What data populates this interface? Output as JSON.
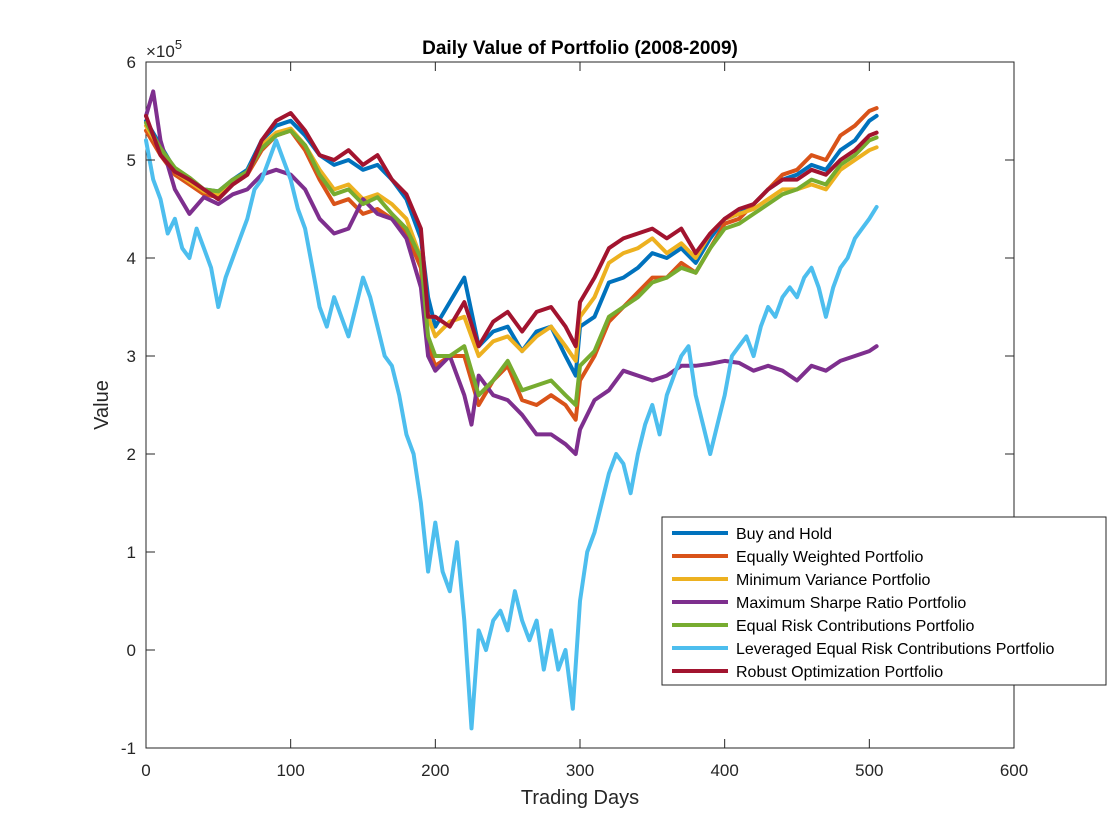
{
  "chart_data": {
    "type": "line",
    "title": "Daily Value of Portfolio (2008-2009)",
    "xlabel": "Trading Days",
    "ylabel": "Value",
    "y_exponent_label": "×10",
    "y_exponent": "5",
    "xlim": [
      0,
      600
    ],
    "ylim": [
      -100000,
      600000
    ],
    "x_ticks": [
      0,
      100,
      200,
      300,
      400,
      500,
      600
    ],
    "x_tick_labels": [
      "0",
      "100",
      "200",
      "300",
      "400",
      "500",
      "600"
    ],
    "y_ticks": [
      -100000,
      0,
      100000,
      200000,
      300000,
      400000,
      500000,
      600000
    ],
    "y_tick_labels": [
      "-1",
      "0",
      "1",
      "2",
      "3",
      "4",
      "5",
      "6"
    ],
    "grid": false,
    "legend_position": "lower-right",
    "series": [
      {
        "name": "Buy and Hold",
        "color": "#0072BD",
        "x": [
          0,
          10,
          20,
          30,
          40,
          50,
          60,
          70,
          80,
          90,
          100,
          110,
          120,
          130,
          140,
          150,
          160,
          170,
          180,
          190,
          195,
          200,
          210,
          220,
          230,
          240,
          250,
          260,
          270,
          280,
          290,
          297,
          300,
          310,
          320,
          330,
          340,
          350,
          360,
          370,
          380,
          390,
          400,
          410,
          420,
          430,
          440,
          450,
          460,
          470,
          480,
          490,
          500,
          505
        ],
        "values": [
          540000,
          515000,
          490000,
          478000,
          470000,
          468000,
          480000,
          490000,
          520000,
          535000,
          540000,
          525000,
          505000,
          495000,
          500000,
          490000,
          495000,
          480000,
          460000,
          420000,
          360000,
          330000,
          355000,
          380000,
          310000,
          325000,
          330000,
          305000,
          325000,
          330000,
          300000,
          280000,
          330000,
          340000,
          375000,
          380000,
          390000,
          405000,
          400000,
          410000,
          395000,
          420000,
          440000,
          445000,
          455000,
          470000,
          480000,
          485000,
          495000,
          490000,
          510000,
          520000,
          540000,
          545000
        ]
      },
      {
        "name": "Equally Weighted Portfolio",
        "color": "#D95319",
        "x": [
          0,
          10,
          20,
          30,
          40,
          50,
          60,
          70,
          80,
          90,
          100,
          110,
          120,
          130,
          140,
          150,
          160,
          170,
          180,
          190,
          195,
          200,
          210,
          220,
          230,
          240,
          250,
          260,
          270,
          280,
          290,
          297,
          300,
          310,
          320,
          330,
          340,
          350,
          360,
          370,
          380,
          390,
          400,
          410,
          420,
          430,
          440,
          450,
          460,
          470,
          480,
          490,
          500,
          505
        ],
        "values": [
          530000,
          505000,
          485000,
          475000,
          465000,
          462000,
          475000,
          485000,
          510000,
          525000,
          530000,
          510000,
          480000,
          455000,
          460000,
          445000,
          450000,
          440000,
          425000,
          390000,
          310000,
          290000,
          300000,
          300000,
          250000,
          275000,
          290000,
          255000,
          250000,
          260000,
          250000,
          235000,
          275000,
          300000,
          335000,
          350000,
          365000,
          380000,
          380000,
          395000,
          385000,
          410000,
          435000,
          440000,
          455000,
          470000,
          485000,
          490000,
          505000,
          500000,
          525000,
          535000,
          550000,
          553000
        ]
      },
      {
        "name": "Minimum Variance Portfolio",
        "color": "#EDB120",
        "x": [
          0,
          10,
          20,
          30,
          40,
          50,
          60,
          70,
          80,
          90,
          100,
          110,
          120,
          130,
          140,
          150,
          160,
          170,
          180,
          190,
          195,
          200,
          210,
          220,
          230,
          240,
          250,
          260,
          270,
          280,
          290,
          297,
          300,
          310,
          320,
          330,
          340,
          350,
          360,
          370,
          380,
          390,
          400,
          410,
          420,
          430,
          440,
          450,
          460,
          470,
          480,
          490,
          500,
          505
        ],
        "values": [
          535000,
          510000,
          488000,
          478000,
          468000,
          465000,
          478000,
          488000,
          515000,
          528000,
          532000,
          515000,
          490000,
          470000,
          475000,
          460000,
          465000,
          455000,
          440000,
          400000,
          340000,
          320000,
          335000,
          340000,
          300000,
          315000,
          320000,
          305000,
          320000,
          330000,
          310000,
          295000,
          340000,
          360000,
          395000,
          405000,
          410000,
          420000,
          405000,
          415000,
          400000,
          425000,
          440000,
          445000,
          450000,
          460000,
          470000,
          470000,
          475000,
          470000,
          490000,
          500000,
          510000,
          513000
        ]
      },
      {
        "name": "Maximum Sharpe Ratio Portfolio",
        "color": "#7E2F8E",
        "x": [
          0,
          5,
          10,
          20,
          30,
          40,
          50,
          60,
          70,
          80,
          90,
          100,
          110,
          120,
          130,
          140,
          150,
          160,
          170,
          180,
          190,
          195,
          200,
          210,
          220,
          225,
          230,
          240,
          250,
          260,
          270,
          280,
          290,
          297,
          300,
          310,
          320,
          330,
          340,
          350,
          360,
          370,
          380,
          390,
          400,
          410,
          420,
          430,
          440,
          450,
          460,
          470,
          480,
          490,
          500,
          505
        ],
        "values": [
          545000,
          570000,
          520000,
          470000,
          445000,
          462000,
          455000,
          465000,
          470000,
          485000,
          490000,
          485000,
          470000,
          440000,
          425000,
          430000,
          460000,
          445000,
          440000,
          420000,
          370000,
          300000,
          285000,
          300000,
          260000,
          230000,
          280000,
          260000,
          255000,
          240000,
          220000,
          220000,
          210000,
          200000,
          225000,
          255000,
          265000,
          285000,
          280000,
          275000,
          280000,
          290000,
          290000,
          292000,
          295000,
          293000,
          285000,
          290000,
          285000,
          275000,
          290000,
          285000,
          295000,
          300000,
          305000,
          310000
        ]
      },
      {
        "name": "Equal Risk Contributions Portfolio",
        "color": "#77AC30",
        "x": [
          0,
          10,
          20,
          30,
          40,
          50,
          60,
          70,
          80,
          90,
          100,
          110,
          120,
          130,
          140,
          150,
          160,
          170,
          180,
          190,
          195,
          200,
          210,
          220,
          230,
          240,
          250,
          260,
          270,
          280,
          290,
          297,
          300,
          310,
          320,
          330,
          340,
          350,
          360,
          370,
          380,
          390,
          400,
          410,
          420,
          430,
          440,
          450,
          460,
          470,
          480,
          490,
          500,
          505
        ],
        "values": [
          538000,
          512000,
          492000,
          482000,
          470000,
          468000,
          480000,
          488000,
          512000,
          525000,
          530000,
          515000,
          485000,
          465000,
          470000,
          455000,
          462000,
          445000,
          430000,
          400000,
          320000,
          300000,
          300000,
          310000,
          260000,
          275000,
          295000,
          265000,
          270000,
          275000,
          260000,
          250000,
          290000,
          305000,
          340000,
          350000,
          360000,
          375000,
          380000,
          390000,
          385000,
          410000,
          430000,
          435000,
          445000,
          455000,
          465000,
          470000,
          480000,
          475000,
          495000,
          505000,
          520000,
          523000
        ]
      },
      {
        "name": "Leveraged Equal Risk Contributions Portfolio",
        "color": "#4DBEEE",
        "x": [
          0,
          5,
          10,
          15,
          20,
          25,
          30,
          35,
          40,
          45,
          50,
          55,
          60,
          65,
          70,
          75,
          80,
          85,
          90,
          95,
          100,
          105,
          110,
          115,
          120,
          125,
          130,
          135,
          140,
          145,
          150,
          155,
          160,
          165,
          170,
          175,
          180,
          185,
          190,
          195,
          200,
          205,
          210,
          215,
          220,
          225,
          230,
          235,
          240,
          245,
          250,
          255,
          260,
          265,
          270,
          275,
          280,
          285,
          290,
          295,
          300,
          305,
          310,
          315,
          320,
          325,
          330,
          335,
          340,
          345,
          350,
          355,
          360,
          365,
          370,
          375,
          380,
          385,
          390,
          395,
          400,
          405,
          410,
          415,
          420,
          425,
          430,
          435,
          440,
          445,
          450,
          455,
          460,
          465,
          470,
          475,
          480,
          485,
          490,
          495,
          500,
          505
        ],
        "values": [
          520000,
          480000,
          460000,
          425000,
          440000,
          410000,
          400000,
          430000,
          410000,
          390000,
          350000,
          380000,
          400000,
          420000,
          440000,
          470000,
          480000,
          500000,
          520000,
          500000,
          480000,
          450000,
          430000,
          390000,
          350000,
          330000,
          360000,
          340000,
          320000,
          350000,
          380000,
          360000,
          330000,
          300000,
          290000,
          260000,
          220000,
          200000,
          150000,
          80000,
          130000,
          80000,
          60000,
          110000,
          30000,
          -80000,
          20000,
          0,
          30000,
          40000,
          20000,
          60000,
          30000,
          10000,
          30000,
          -20000,
          20000,
          -20000,
          0,
          -60000,
          50000,
          100000,
          120000,
          150000,
          180000,
          200000,
          190000,
          160000,
          200000,
          230000,
          250000,
          220000,
          260000,
          280000,
          300000,
          310000,
          260000,
          230000,
          200000,
          230000,
          260000,
          300000,
          310000,
          320000,
          300000,
          330000,
          350000,
          340000,
          360000,
          370000,
          360000,
          380000,
          390000,
          370000,
          340000,
          370000,
          390000,
          400000,
          420000,
          430000,
          440000,
          452000
        ]
      },
      {
        "name": "Robust Optimization Portfolio",
        "color": "#A2142F",
        "x": [
          0,
          10,
          20,
          30,
          40,
          50,
          60,
          70,
          80,
          90,
          100,
          110,
          120,
          130,
          140,
          150,
          160,
          170,
          180,
          190,
          195,
          200,
          210,
          220,
          230,
          240,
          250,
          260,
          270,
          280,
          290,
          297,
          300,
          310,
          320,
          330,
          340,
          350,
          360,
          370,
          380,
          390,
          400,
          410,
          420,
          430,
          440,
          450,
          460,
          470,
          480,
          490,
          500,
          505
        ],
        "values": [
          545000,
          505000,
          488000,
          480000,
          470000,
          460000,
          475000,
          485000,
          520000,
          540000,
          548000,
          530000,
          505000,
          500000,
          510000,
          495000,
          505000,
          480000,
          465000,
          430000,
          340000,
          340000,
          330000,
          355000,
          310000,
          335000,
          345000,
          325000,
          345000,
          350000,
          330000,
          310000,
          355000,
          380000,
          410000,
          420000,
          425000,
          430000,
          420000,
          430000,
          405000,
          425000,
          440000,
          450000,
          455000,
          470000,
          480000,
          480000,
          490000,
          485000,
          500000,
          510000,
          525000,
          528000
        ]
      }
    ]
  }
}
